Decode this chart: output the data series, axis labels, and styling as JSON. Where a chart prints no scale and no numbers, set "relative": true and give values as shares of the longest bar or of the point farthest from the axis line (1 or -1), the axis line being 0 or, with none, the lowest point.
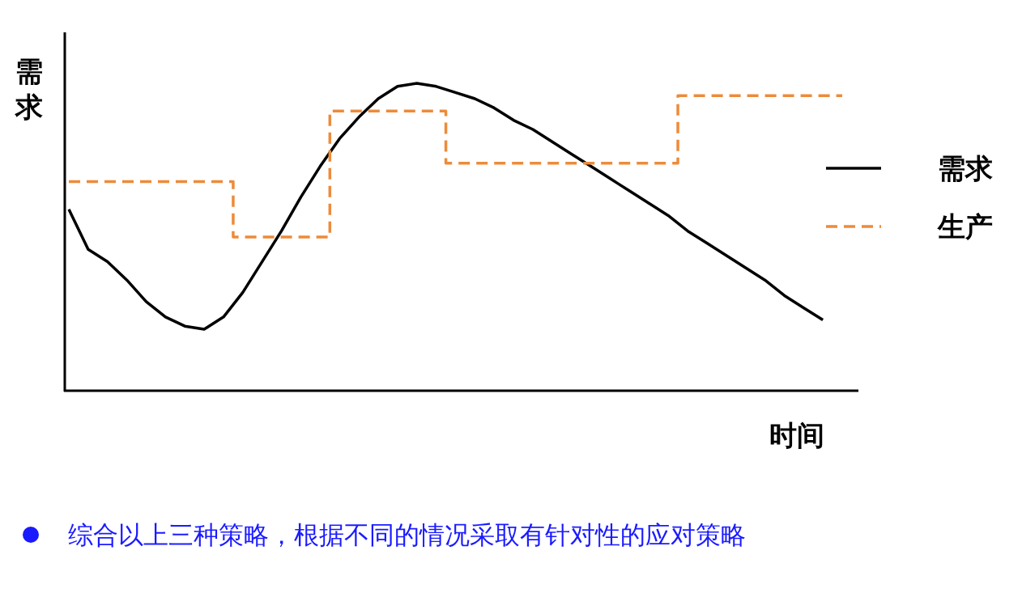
{
  "chart_data": {
    "type": "line",
    "relative": true,
    "ylabel": "需求",
    "xlabel": "时间",
    "legend": "right",
    "categories": [
      null,
      null,
      null,
      null,
      null,
      null,
      null,
      null,
      null,
      null,
      null,
      null,
      null,
      null,
      null,
      null,
      null,
      null,
      null,
      null,
      null,
      null,
      null,
      null,
      null,
      null,
      null,
      null,
      null,
      null,
      null,
      null,
      null,
      null,
      null,
      null,
      null,
      null,
      null,
      null,
      null
    ],
    "series": [
      {
        "name": "需求",
        "type": "line",
        "color": "#000000",
        "line_style": "solid",
        "values": [
          0.59,
          0.46,
          0.42,
          0.36,
          0.29,
          0.24,
          0.21,
          0.2,
          0.24,
          0.32,
          0.42,
          0.52,
          0.63,
          0.73,
          0.82,
          0.89,
          0.95,
          0.99,
          1,
          0.99,
          0.97,
          0.95,
          0.92,
          0.88,
          0.85,
          0.81,
          0.77,
          0.73,
          0.69,
          0.65,
          0.61,
          0.57,
          0.52,
          0.48,
          0.44,
          0.4,
          0.36,
          0.31,
          0.27,
          0.23,
          null
        ]
      },
      {
        "name": "生产",
        "type": "step",
        "color": "#ed8b3a",
        "line_style": "dashed",
        "values": [
          0.68,
          0.68,
          0.68,
          0.68,
          0.68,
          0.68,
          0.68,
          0.68,
          0.68,
          0.5,
          0.5,
          0.5,
          0.5,
          0.5,
          0.91,
          0.91,
          0.91,
          0.91,
          0.91,
          0.91,
          0.74,
          0.74,
          0.74,
          0.74,
          0.74,
          0.74,
          0.74,
          0.74,
          0.74,
          0.74,
          0.74,
          0.74,
          0.96,
          0.96,
          0.96,
          0.96,
          0.96,
          0.96,
          0.96,
          0.96,
          0.96
        ]
      }
    ],
    "annotations": [
      "综合以上三种策略，根据不同的情况采取有针对性的应对策略"
    ]
  }
}
